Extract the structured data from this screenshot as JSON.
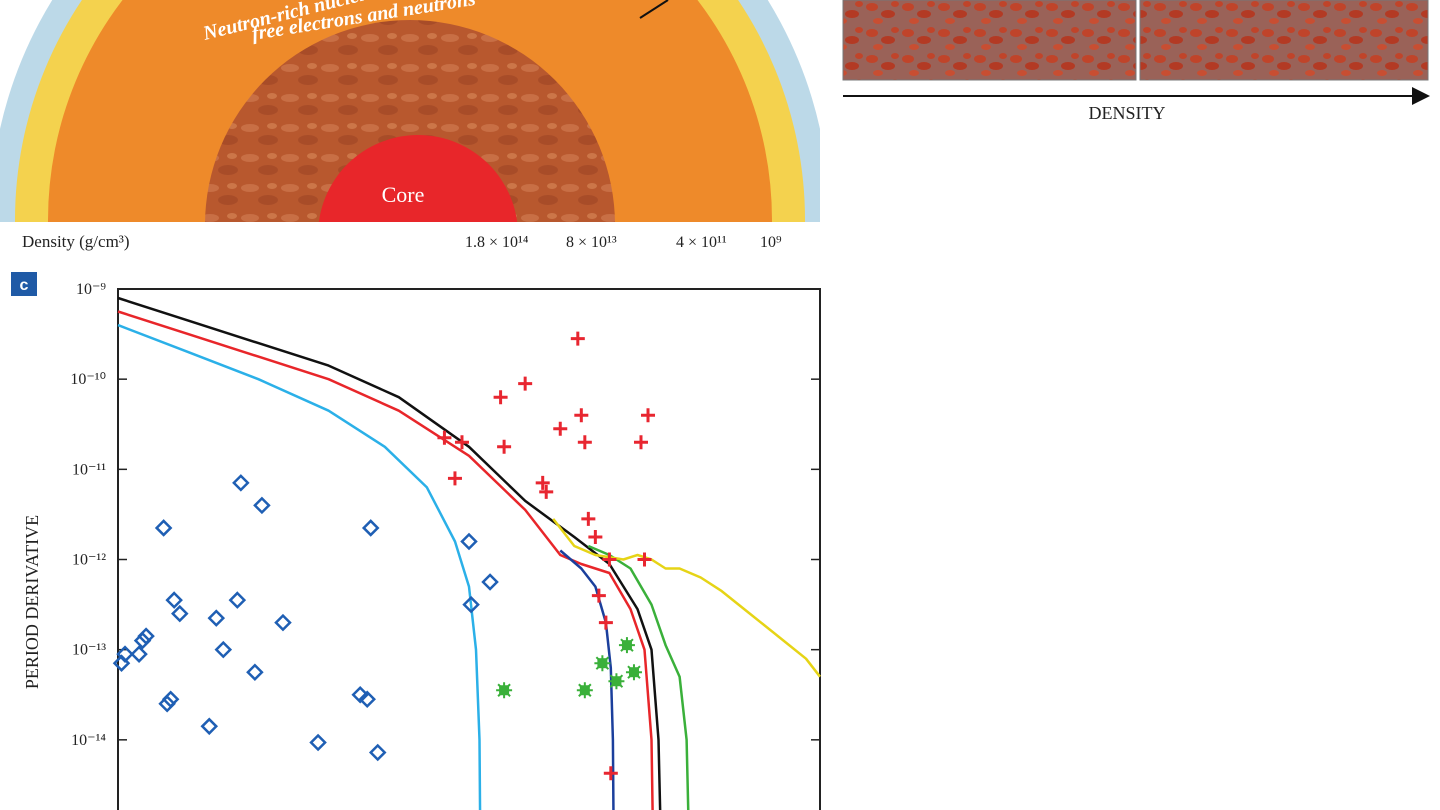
{
  "crust_diagram": {
    "layer_label_line1": "Neutron-rich nuclei in solid,",
    "layer_label_line2": "free electrons and neutrons",
    "core_label": "Core",
    "density_label": "Density (g/cm³)",
    "density_ticks": [
      "1.8 × 10¹⁴",
      "8 × 10¹³",
      "4 × 10¹¹",
      "10⁹"
    ],
    "colors": {
      "core": "#e8262a",
      "inner_crust": "#b8582e",
      "outer_crust": "#ee8a2a",
      "envelope": "#f4d24e",
      "atmosphere": "#bcd9e8"
    }
  },
  "density_panels": {
    "axis_label": "DENSITY",
    "colors": {
      "background": "#9a6258",
      "particles": "#c0442a"
    }
  },
  "panel_c": {
    "panel_letter": "c",
    "panel_letter_bg": "#1f5aa6"
  },
  "chart_data": {
    "type": "scatter",
    "title": "",
    "xlabel": "",
    "ylabel": "PERIOD DERIVATIVE",
    "yscale": "log",
    "ylim": [
      1e-15,
      1e-09
    ],
    "y_ticks": [
      {
        "value": -9,
        "label": "10⁻⁹"
      },
      {
        "value": -10,
        "label": "10⁻¹⁰"
      },
      {
        "value": -11,
        "label": "10⁻¹¹"
      },
      {
        "value": -12,
        "label": "10⁻¹²"
      },
      {
        "value": -13,
        "label": "10⁻¹³"
      },
      {
        "value": -14,
        "label": "10⁻¹⁴"
      }
    ],
    "x_axis_units": "relative position (x labels not visible)",
    "xlim": [
      0,
      100
    ],
    "series": [
      {
        "marker": "diamond",
        "color": "#1f5fb4",
        "points": [
          [
            0.5,
            -13.15
          ],
          [
            1,
            -13.05
          ],
          [
            3,
            -13.05
          ],
          [
            3.5,
            -12.9
          ],
          [
            4,
            -12.85
          ],
          [
            6.5,
            -11.65
          ],
          [
            7,
            -13.6
          ],
          [
            7.5,
            -13.55
          ],
          [
            8,
            -12.45
          ],
          [
            8.8,
            -12.6
          ],
          [
            13,
            -13.85
          ],
          [
            14,
            -12.65
          ],
          [
            15,
            -13.0
          ],
          [
            17,
            -12.45
          ],
          [
            17.5,
            -11.15
          ],
          [
            19.5,
            -13.25
          ],
          [
            20.5,
            -11.4
          ],
          [
            23.5,
            -12.7
          ],
          [
            28.5,
            -14.03
          ],
          [
            34.5,
            -13.5
          ],
          [
            35.5,
            -13.55
          ],
          [
            36,
            -11.65
          ],
          [
            37,
            -14.14
          ],
          [
            50,
            -11.8
          ],
          [
            50.3,
            -12.5
          ],
          [
            53,
            -12.25
          ]
        ]
      },
      {
        "marker": "plus",
        "color": "#e82630",
        "points": [
          [
            46.5,
            -10.65
          ],
          [
            48,
            -11.1
          ],
          [
            49,
            -10.7
          ],
          [
            54.5,
            -10.2
          ],
          [
            55,
            -10.75
          ],
          [
            58,
            -10.05
          ],
          [
            60.5,
            -11.15
          ],
          [
            61,
            -11.25
          ],
          [
            63,
            -10.55
          ],
          [
            65.5,
            -9.55
          ],
          [
            66,
            -10.4
          ],
          [
            66.5,
            -10.7
          ],
          [
            67,
            -11.55
          ],
          [
            68,
            -11.75
          ],
          [
            68.5,
            -12.4
          ],
          [
            69.5,
            -12.7
          ],
          [
            70,
            -12.0
          ],
          [
            70.2,
            -14.37
          ],
          [
            74.5,
            -10.7
          ],
          [
            75,
            -12.0
          ],
          [
            75.5,
            -10.4
          ]
        ]
      },
      {
        "marker": "star",
        "color": "#3ab03a",
        "points": [
          [
            55,
            -13.45
          ],
          [
            66.5,
            -13.45
          ],
          [
            69,
            -13.15
          ],
          [
            71,
            -13.35
          ],
          [
            72.5,
            -12.95
          ],
          [
            73.5,
            -13.25
          ]
        ]
      }
    ],
    "curves": [
      {
        "color": "#111111",
        "points": [
          [
            0,
            -9.1
          ],
          [
            10,
            -9.35
          ],
          [
            20,
            -9.6
          ],
          [
            30,
            -9.85
          ],
          [
            40,
            -10.2
          ],
          [
            50,
            -10.75
          ],
          [
            58,
            -11.35
          ],
          [
            65,
            -11.75
          ],
          [
            70,
            -12.05
          ],
          [
            74,
            -12.55
          ],
          [
            76,
            -13.0
          ],
          [
            77,
            -14.0
          ],
          [
            77.3,
            -15.0
          ]
        ]
      },
      {
        "color": "#e8262a",
        "points": [
          [
            0,
            -9.25
          ],
          [
            10,
            -9.5
          ],
          [
            20,
            -9.75
          ],
          [
            30,
            -10.0
          ],
          [
            40,
            -10.35
          ],
          [
            50,
            -10.85
          ],
          [
            58,
            -11.45
          ],
          [
            63,
            -11.95
          ],
          [
            66,
            -12.05
          ],
          [
            70,
            -12.15
          ],
          [
            73,
            -12.55
          ],
          [
            75,
            -13.0
          ],
          [
            76,
            -14.0
          ],
          [
            76.2,
            -15.0
          ]
        ]
      },
      {
        "color": "#2bb0e8",
        "points": [
          [
            0,
            -9.4
          ],
          [
            10,
            -9.7
          ],
          [
            20,
            -10.0
          ],
          [
            30,
            -10.35
          ],
          [
            38,
            -10.75
          ],
          [
            44,
            -11.2
          ],
          [
            48,
            -11.8
          ],
          [
            50,
            -12.3
          ],
          [
            51,
            -13.0
          ],
          [
            51.5,
            -14.0
          ],
          [
            51.6,
            -15.0
          ]
        ]
      },
      {
        "color": "#1b3f9c",
        "points": [
          [
            63,
            -11.9
          ],
          [
            66,
            -12.1
          ],
          [
            68,
            -12.3
          ],
          [
            69.5,
            -12.7
          ],
          [
            70.2,
            -13.2
          ],
          [
            70.5,
            -14.0
          ],
          [
            70.6,
            -15.0
          ]
        ]
      },
      {
        "color": "#3ab03a",
        "points": [
          [
            67,
            -11.85
          ],
          [
            70,
            -11.95
          ],
          [
            73,
            -12.1
          ],
          [
            76,
            -12.5
          ],
          [
            78,
            -12.95
          ],
          [
            80,
            -13.3
          ],
          [
            81,
            -14.0
          ],
          [
            81.3,
            -15.0
          ]
        ]
      },
      {
        "color": "#e6d416",
        "points": [
          [
            62,
            -11.55
          ],
          [
            65,
            -11.85
          ],
          [
            68,
            -11.95
          ],
          [
            72,
            -12.0
          ],
          [
            74,
            -11.95
          ],
          [
            76,
            -12.0
          ],
          [
            78,
            -12.1
          ],
          [
            80,
            -12.1
          ],
          [
            83,
            -12.2
          ],
          [
            86,
            -12.35
          ],
          [
            90,
            -12.6
          ],
          [
            94,
            -12.85
          ],
          [
            98,
            -13.1
          ],
          [
            100,
            -13.3
          ]
        ]
      }
    ]
  }
}
